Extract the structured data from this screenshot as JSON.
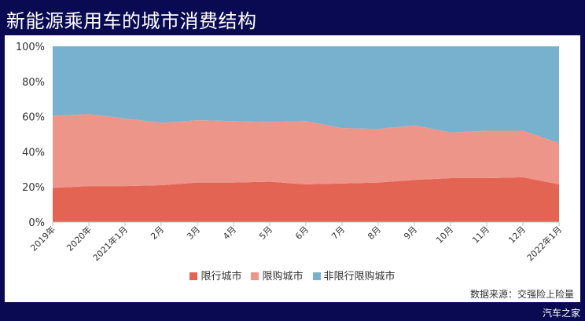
{
  "title": "新能源乘用车的城市消费结构",
  "source": "数据来源：交强险上险量",
  "watermark": "汽车之家",
  "colors": {
    "background": "#0a0a52",
    "series": [
      "#e46454",
      "#ee958a",
      "#77b1ce"
    ]
  },
  "chart_data": {
    "type": "area",
    "stacked": true,
    "percent": true,
    "categories": [
      "2019年",
      "2020年",
      "2021年1月",
      "2月",
      "3月",
      "4月",
      "5月",
      "6月",
      "7月",
      "8月",
      "9月",
      "10月",
      "11月",
      "12月",
      "2022年1月"
    ],
    "series": [
      {
        "name": "限行城市",
        "values": [
          19.5,
          20.5,
          20.5,
          21,
          22.5,
          22.5,
          23,
          21.5,
          22,
          22.5,
          24,
          25,
          25,
          25.5,
          21.5
        ]
      },
      {
        "name": "限购城市",
        "values": [
          41,
          41,
          38.5,
          35.5,
          35.5,
          35,
          34,
          36,
          31.5,
          30.5,
          31,
          26,
          27,
          26.5,
          23.5
        ]
      },
      {
        "name": "非限行限购城市",
        "values": [
          39.5,
          38.5,
          41,
          43.5,
          42,
          42.5,
          43,
          42.5,
          46.5,
          47,
          45,
          49,
          48,
          48,
          55
        ]
      }
    ],
    "yticks": [
      "0%",
      "20%",
      "40%",
      "60%",
      "80%",
      "100%"
    ],
    "ylim": [
      0,
      100
    ],
    "legend_position": "bottom"
  }
}
